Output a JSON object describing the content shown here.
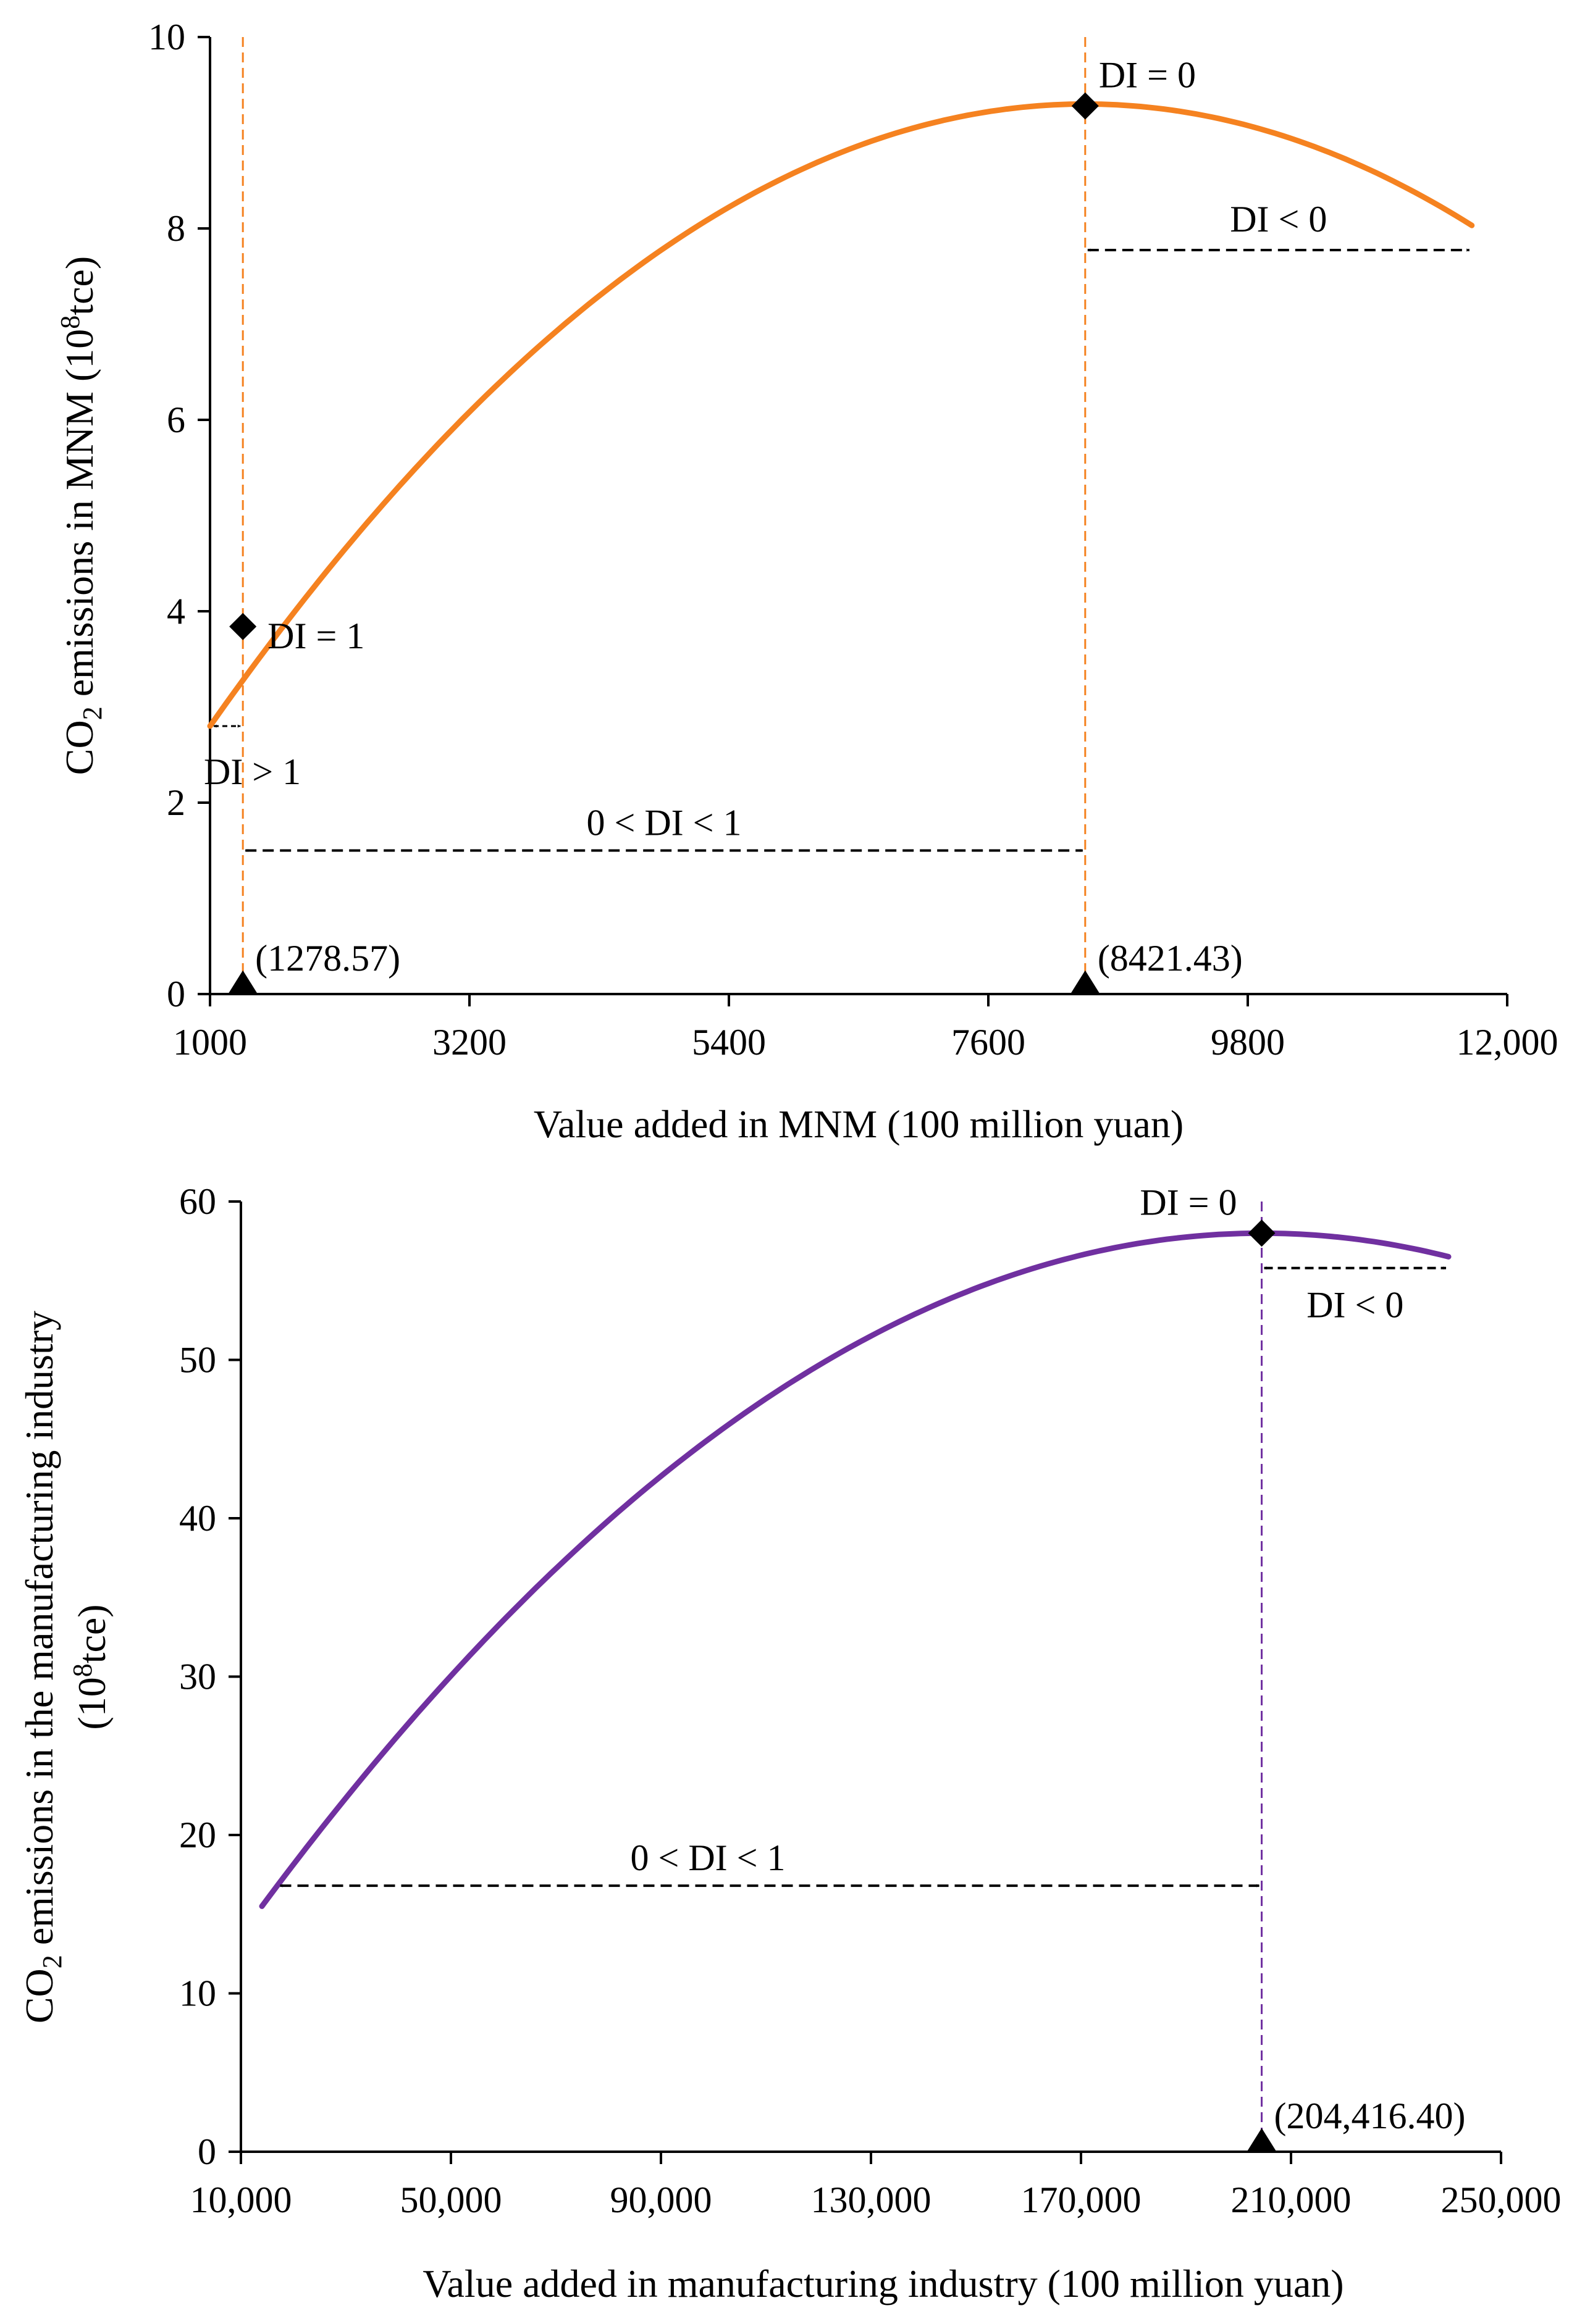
{
  "chart_data": [
    {
      "type": "line",
      "name": "MNM",
      "xlabel": "Value added in MNM (100 million yuan)",
      "ylabel_main": "CO",
      "ylabel_sub": "2",
      "ylabel_rest": " emissions in MNM (10",
      "ylabel_sup": "8",
      "ylabel_end": "tce)",
      "xlim": [
        1000,
        12000
      ],
      "ylim": [
        0,
        10
      ],
      "x_ticks": [
        1000,
        3200,
        5400,
        7600,
        9800,
        12000
      ],
      "x_tick_labels": [
        "1000",
        "3200",
        "5400",
        "7600",
        "9800",
        "12,000"
      ],
      "y_ticks": [
        0,
        2,
        4,
        6,
        8,
        10
      ],
      "y_tick_labels": [
        "0",
        "2",
        "4",
        "6",
        "8",
        "10"
      ],
      "color": "#F58220",
      "curve": {
        "x_start": 1000,
        "x_end": 11700,
        "y_start": 2.8,
        "x_peak": 8421.43,
        "y_peak": 9.3
      },
      "turning_points": [
        {
          "x": 1278.57,
          "y": 3.84,
          "label": "DI = 1",
          "x_label": "(1278.57)"
        },
        {
          "x": 8421.43,
          "y": 9.28,
          "label": "DI = 0",
          "x_label": "(8421.43)"
        }
      ],
      "ranges": [
        {
          "label": "DI > 1",
          "x_from": 1000,
          "x_to": 1278.57,
          "y": 2.8
        },
        {
          "label": "0 < DI < 1",
          "x_from": 1278.57,
          "x_to": 8421.43,
          "y": 1.5
        },
        {
          "label": "DI < 0",
          "x_from": 8421.43,
          "x_to": 11700,
          "y": 7.8
        }
      ]
    },
    {
      "type": "line",
      "name": "Manufacturing",
      "xlabel": "Value added in manufacturing industry (100 million yuan)",
      "ylabel_main": "CO",
      "ylabel_sub": "2",
      "ylabel_rest": " emissions in the manufacturing industry",
      "ylabel_line2_pre": "(10",
      "ylabel_line2_sup": "8",
      "ylabel_line2_end": "tce)",
      "xlim": [
        10000,
        250000
      ],
      "ylim": [
        0,
        60
      ],
      "x_ticks": [
        10000,
        50000,
        90000,
        130000,
        170000,
        210000,
        250000
      ],
      "x_tick_labels": [
        "10,000",
        "50,000",
        "90,000",
        "130,000",
        "170,000",
        "210,000",
        "250,000"
      ],
      "y_ticks": [
        0,
        10,
        20,
        30,
        40,
        50,
        60
      ],
      "y_tick_labels": [
        "0",
        "10",
        "20",
        "30",
        "40",
        "50",
        "60"
      ],
      "color": "#7030A0",
      "curve": {
        "x_start": 14000,
        "x_end": 240000,
        "y_start": 15.5,
        "x_peak": 204416.4,
        "y_peak": 58
      },
      "turning_points": [
        {
          "x": 204416.4,
          "y": 58,
          "label": "DI = 0",
          "x_label": "(204,416.40)"
        }
      ],
      "ranges": [
        {
          "label": "0 < DI < 1",
          "x_from": 17000,
          "x_to": 204416.4,
          "y": 16.8
        },
        {
          "label": "DI < 0",
          "x_from": 204416.4,
          "x_to": 240000,
          "y": 55.8
        }
      ]
    }
  ]
}
